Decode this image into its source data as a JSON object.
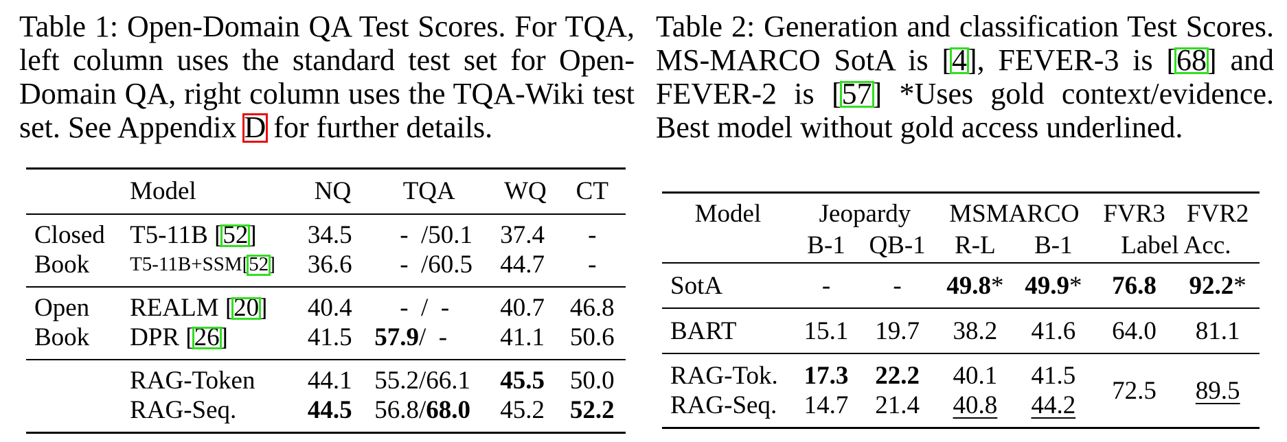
{
  "table1": {
    "caption": {
      "part1": "Table 1: Open-Domain QA Test Scores. For TQA, left column uses the standard test set for Open-Domain QA, right column uses the TQA-Wiki test set. See Appendix ",
      "ref": "D",
      "part2": " for further details."
    },
    "headers": [
      "",
      "Model",
      "NQ",
      "TQA",
      "WQ",
      "CT"
    ],
    "groups": [
      {
        "label_line1": "Closed",
        "label_line2": "Book",
        "rows": [
          {
            "model": "T5-11B [",
            "ref": "52",
            "model_end": "]",
            "nq": "34.5",
            "tqa_a": "-",
            "tqa_b": "/50.1",
            "wq": "37.4",
            "ct": "-"
          },
          {
            "model": "T5-11B+SSM[",
            "ref": "52",
            "model_end": "]",
            "nq": "36.6",
            "tqa_a": "-",
            "tqa_b": "/60.5",
            "wq": "44.7",
            "ct": "-"
          }
        ]
      },
      {
        "label_line1": "Open",
        "label_line2": "Book",
        "rows": [
          {
            "model": "REALM [",
            "ref": "20",
            "model_end": "]",
            "nq": "40.4",
            "tqa_a": "-",
            "tqa_b": "/",
            "tqa_c": "-",
            "wq": "40.7",
            "ct": "46.8"
          },
          {
            "model": "DPR [",
            "ref": "26",
            "model_end": "]",
            "nq": "41.5",
            "tqa_a": "57.9",
            "tqa_b": "/",
            "tqa_c": "-",
            "wq": "41.1",
            "ct": "50.6"
          }
        ]
      },
      {
        "rows": [
          {
            "model": "RAG-Token",
            "nq": "44.1",
            "tqa": "55.2/66.1",
            "wq": "45.5",
            "ct": "50.0"
          },
          {
            "model": "RAG-Seq.",
            "nq": "44.5",
            "tqa_a": "56.8/",
            "tqa_b": "68.0",
            "wq": "45.2",
            "ct": "52.2"
          }
        ]
      }
    ]
  },
  "table2": {
    "caption": {
      "part1": "Table 2: Generation and classification Test Scores. MS-MARCO SotA is [",
      "ref1": "4",
      "part2": "], FEVER-3 is [",
      "ref2": "68",
      "part3": "] and FEVER-2 is [",
      "ref3": "57",
      "part4": "] *Uses gold context/evidence. Best model without gold access underlined."
    },
    "header_top": [
      "Model",
      "Jeopardy",
      "MSMARCO",
      "FVR3",
      "FVR2"
    ],
    "header_sub": [
      "B-1",
      "QB-1",
      "R-L",
      "B-1",
      "Label Acc."
    ],
    "rows": {
      "sota": {
        "model": "SotA",
        "jb1": "-",
        "jqb1": "-",
        "rl": "49.8",
        "rl_star": "*",
        "b1": "49.9",
        "b1_star": "*",
        "fvr3": "76.8",
        "fvr2": "92.2",
        "fvr2_star": "*"
      },
      "bart": {
        "model": "BART",
        "jb1": "15.1",
        "jqb1": "19.7",
        "rl": "38.2",
        "b1": "41.6",
        "fvr3": "64.0",
        "fvr2": "81.1"
      },
      "ragtok": {
        "model": "RAG-Tok.",
        "jb1": "17.3",
        "jqb1": "22.2",
        "rl": "40.1",
        "b1": "41.5"
      },
      "ragseq": {
        "model": "RAG-Seq.",
        "jb1": "14.7",
        "jqb1": "21.4",
        "rl": "40.8",
        "b1": "44.2"
      },
      "rag_shared": {
        "fvr3": "72.5",
        "fvr2": "89.5"
      }
    }
  }
}
